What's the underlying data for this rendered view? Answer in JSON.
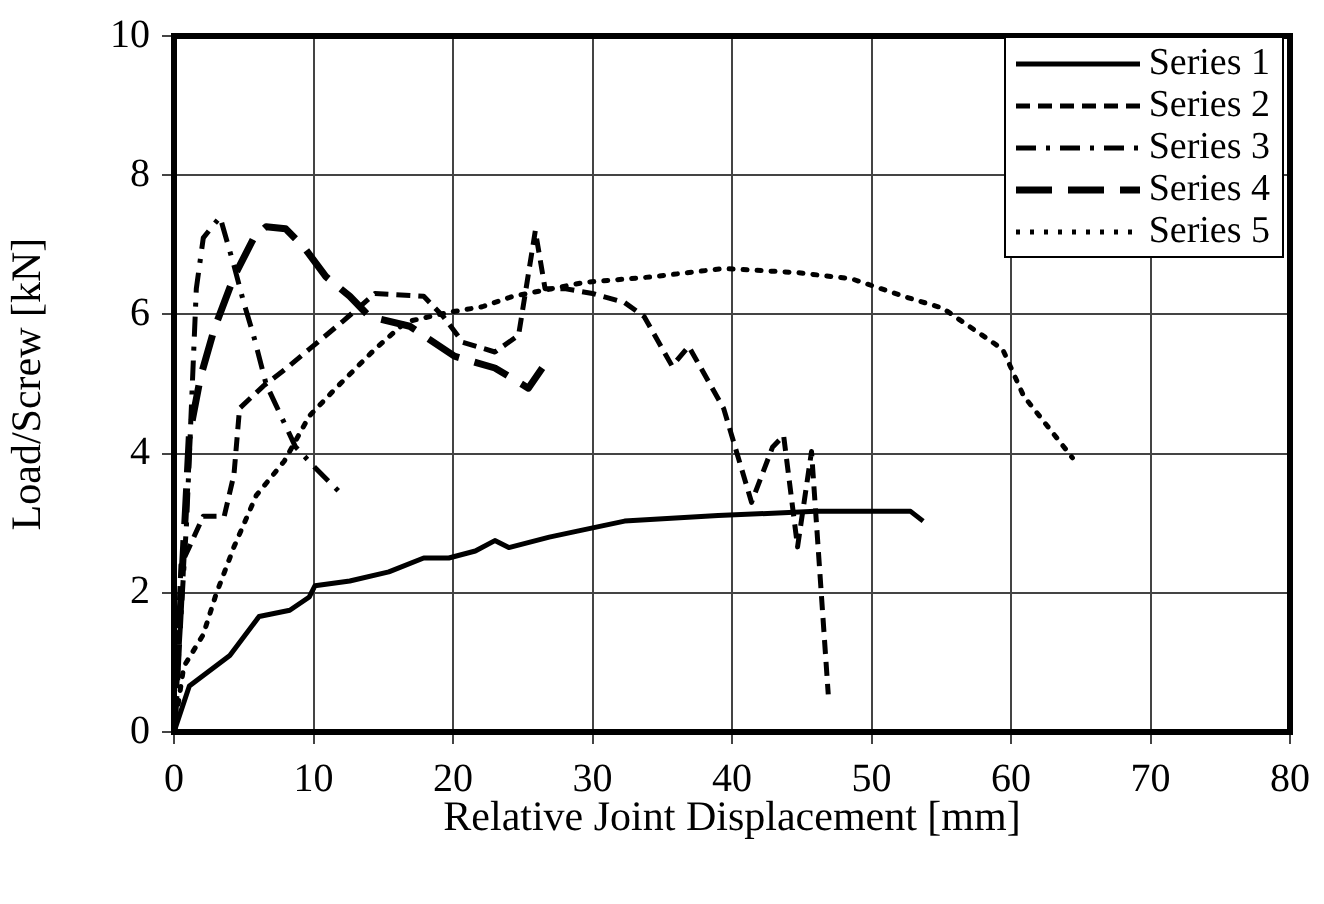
{
  "chart_data": {
    "type": "line",
    "xlabel": "Relative Joint Displacement [mm]",
    "ylabel": "Load/Screw [kN]",
    "xlim": [
      0,
      80
    ],
    "xticks": [
      0,
      10,
      20,
      30,
      40,
      50,
      60,
      70,
      80
    ],
    "ylim": [
      0,
      10
    ],
    "yticks": [
      0,
      2,
      4,
      6,
      8,
      10
    ],
    "grid": true,
    "legend": "top right",
    "marker": "none",
    "series": [
      {
        "name": "Series 1",
        "color": "#000000",
        "line_style": "solid",
        "x": [
          0,
          1.1,
          4,
          6.1,
          8.3,
          9.7,
          10.1,
          12.6,
          15.4,
          17.9,
          19.7,
          21.6,
          23,
          24,
          26.9,
          29,
          32.3,
          39,
          46,
          52.8,
          53.7
        ],
        "values": [
          0,
          0.66,
          1.1,
          1.66,
          1.75,
          1.94,
          2.1,
          2.17,
          2.3,
          2.5,
          2.5,
          2.6,
          2.75,
          2.65,
          2.8,
          2.89,
          3.03,
          3.11,
          3.17,
          3.17,
          3.03
        ]
      },
      {
        "name": "Series 2",
        "color": "#000000",
        "line_style": "dashed",
        "x": [
          0,
          0.5,
          1.1,
          2.1,
          3.6,
          4.3,
          4.7,
          6.4,
          7.9,
          9.7,
          12.1,
          14.4,
          17.9,
          19.3,
          20.7,
          23,
          24.7,
          25.9,
          26.6,
          28,
          30,
          32.3,
          33.7,
          35.7,
          36.9,
          39.4,
          41.4,
          42.9,
          43.7,
          44.7,
          45.7,
          46.9
        ],
        "values": [
          0,
          2.4,
          2.66,
          3.1,
          3.1,
          3.7,
          4.65,
          4.97,
          5.2,
          5.5,
          5.9,
          6.3,
          6.26,
          5.97,
          5.6,
          5.46,
          5.7,
          7.2,
          6.37,
          6.37,
          6.3,
          6.17,
          5.97,
          5.26,
          5.54,
          4.65,
          3.3,
          4.09,
          4.26,
          2.66,
          4.03,
          0.54
        ]
      },
      {
        "name": "Series 3",
        "color": "#000000",
        "line_style": "dashdot",
        "x": [
          0,
          0.9,
          1.6,
          2.1,
          3.3,
          4.3,
          5,
          5.7,
          6.6,
          7.3,
          8.7,
          10.1,
          12.1
        ],
        "values": [
          0,
          3,
          6.37,
          7.1,
          7.4,
          6.7,
          6.17,
          5.7,
          5,
          4.7,
          4.1,
          3.8,
          3.4
        ]
      },
      {
        "name": "Series 4",
        "color": "#000000",
        "line_style": "longdash",
        "x": [
          0,
          1.1,
          1.9,
          2.9,
          4.3,
          5.7,
          6.6,
          8,
          9.3,
          10.9,
          12.6,
          14,
          16.9,
          20.1,
          23,
          25.4,
          26.4
        ],
        "values": [
          0,
          4.26,
          5.1,
          5.8,
          6.54,
          7.09,
          7.26,
          7.23,
          6.97,
          6.54,
          6.26,
          5.97,
          5.83,
          5.4,
          5.23,
          4.94,
          5.23
        ]
      },
      {
        "name": "Series 5",
        "color": "#000000",
        "line_style": "dotted",
        "x": [
          0,
          0.7,
          2.1,
          3,
          4.3,
          5.9,
          7.9,
          9.7,
          11.6,
          14.4,
          16.6,
          19.7,
          22.1,
          24.3,
          29.4,
          34.3,
          39.4,
          44.7,
          48.6,
          52.3,
          55.1,
          59.4,
          60.9,
          64.4
        ],
        "values": [
          0,
          0.94,
          1.4,
          1.97,
          2.66,
          3.4,
          3.89,
          4.54,
          4.94,
          5.5,
          5.89,
          6.03,
          6.11,
          6.26,
          6.46,
          6.54,
          6.66,
          6.6,
          6.51,
          6.26,
          6.09,
          5.5,
          4.83,
          3.94
        ]
      }
    ]
  }
}
